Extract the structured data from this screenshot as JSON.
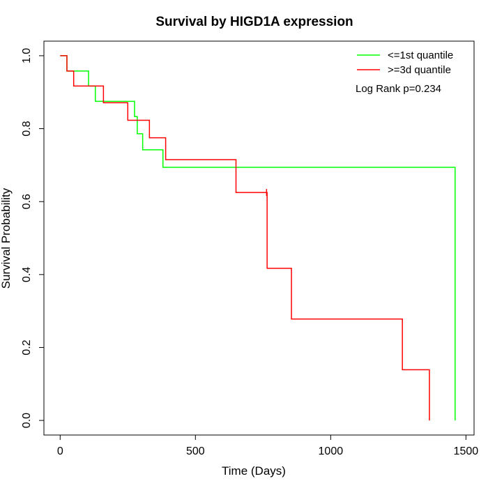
{
  "chart_data": {
    "type": "line",
    "title": "Survival by HIGD1A expression",
    "xlabel": "Time (Days)",
    "ylabel": "Survival Probability",
    "xlim": [
      -60,
      1530
    ],
    "ylim": [
      -0.04,
      1.04
    ],
    "x_ticks": [
      0,
      500,
      1000,
      1500
    ],
    "y_ticks": [
      0.0,
      0.2,
      0.4,
      0.6,
      0.8,
      1.0
    ],
    "x_tick_labels": [
      "0",
      "500",
      "1000",
      "1500"
    ],
    "y_tick_labels": [
      "0.0",
      "0.2",
      "0.4",
      "0.6",
      "0.8",
      "1.0"
    ],
    "grid": false,
    "legend_position": "top-right",
    "annotation": "Log Rank p=0.234",
    "series": [
      {
        "name": "<=1st quantile",
        "color": "#00ff00",
        "step_times": [
          0,
          25,
          105,
          130,
          275,
          285,
          305,
          380,
          1460
        ],
        "step_survival": [
          1.0,
          0.958,
          0.917,
          0.875,
          0.833,
          0.786,
          0.742,
          0.694,
          0.0
        ],
        "censor_times": []
      },
      {
        "name": ">=3d quantile",
        "color": "#ff0000",
        "step_times": [
          0,
          25,
          50,
          160,
          250,
          330,
          390,
          650,
          765,
          855,
          1265,
          1365
        ],
        "step_survival": [
          1.0,
          0.958,
          0.917,
          0.871,
          0.823,
          0.775,
          0.715,
          0.625,
          0.417,
          0.278,
          0.139,
          0.0
        ],
        "censor_times": [
          763
        ]
      }
    ]
  }
}
